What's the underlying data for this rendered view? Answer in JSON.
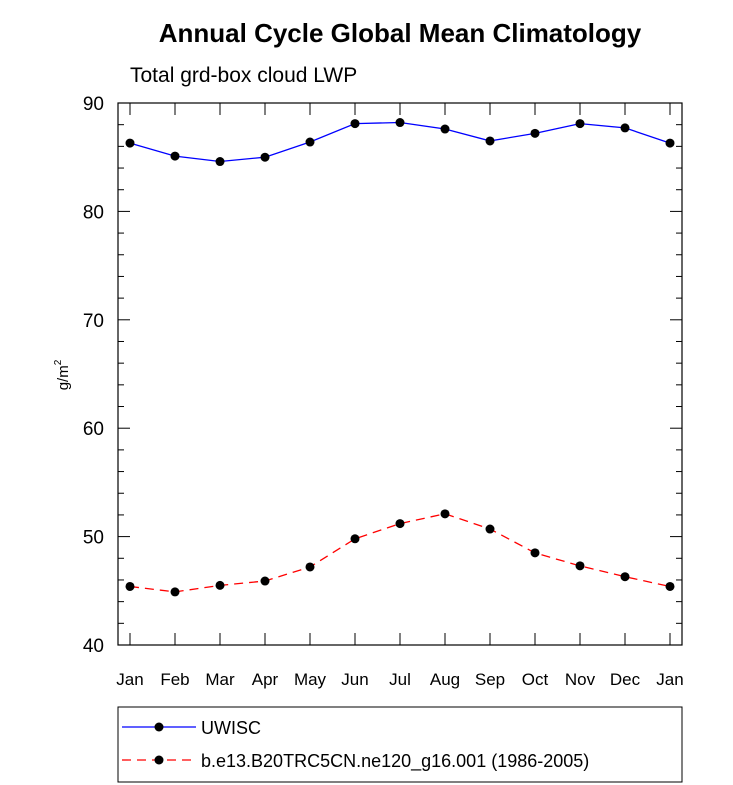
{
  "chart_data": {
    "type": "line",
    "title": "Annual Cycle Global Mean Climatology",
    "subtitle": "Total grd-box cloud LWP",
    "ylabel": "g/m",
    "ylabel_superscript": "2",
    "ylim": [
      40,
      90
    ],
    "yticks": [
      40,
      50,
      60,
      70,
      80,
      90
    ],
    "categories": [
      "Jan",
      "Feb",
      "Mar",
      "Apr",
      "May",
      "Jun",
      "Jul",
      "Aug",
      "Sep",
      "Oct",
      "Nov",
      "Dec",
      "Jan"
    ],
    "series": [
      {
        "name": "UWISC",
        "color": "#0000ff",
        "dash": "solid",
        "values": [
          86.3,
          85.1,
          84.6,
          85.0,
          86.4,
          88.1,
          88.2,
          87.6,
          86.5,
          87.2,
          88.1,
          87.7,
          86.3
        ]
      },
      {
        "name": "b.e13.B20TRC5CN.ne120_g16.001 (1986-2005)",
        "color": "#ff0000",
        "dash": "dashed",
        "values": [
          45.4,
          44.9,
          45.5,
          45.9,
          47.2,
          49.8,
          51.2,
          52.1,
          50.7,
          48.5,
          47.3,
          46.3,
          45.4
        ]
      }
    ],
    "legend_position": "bottom"
  }
}
